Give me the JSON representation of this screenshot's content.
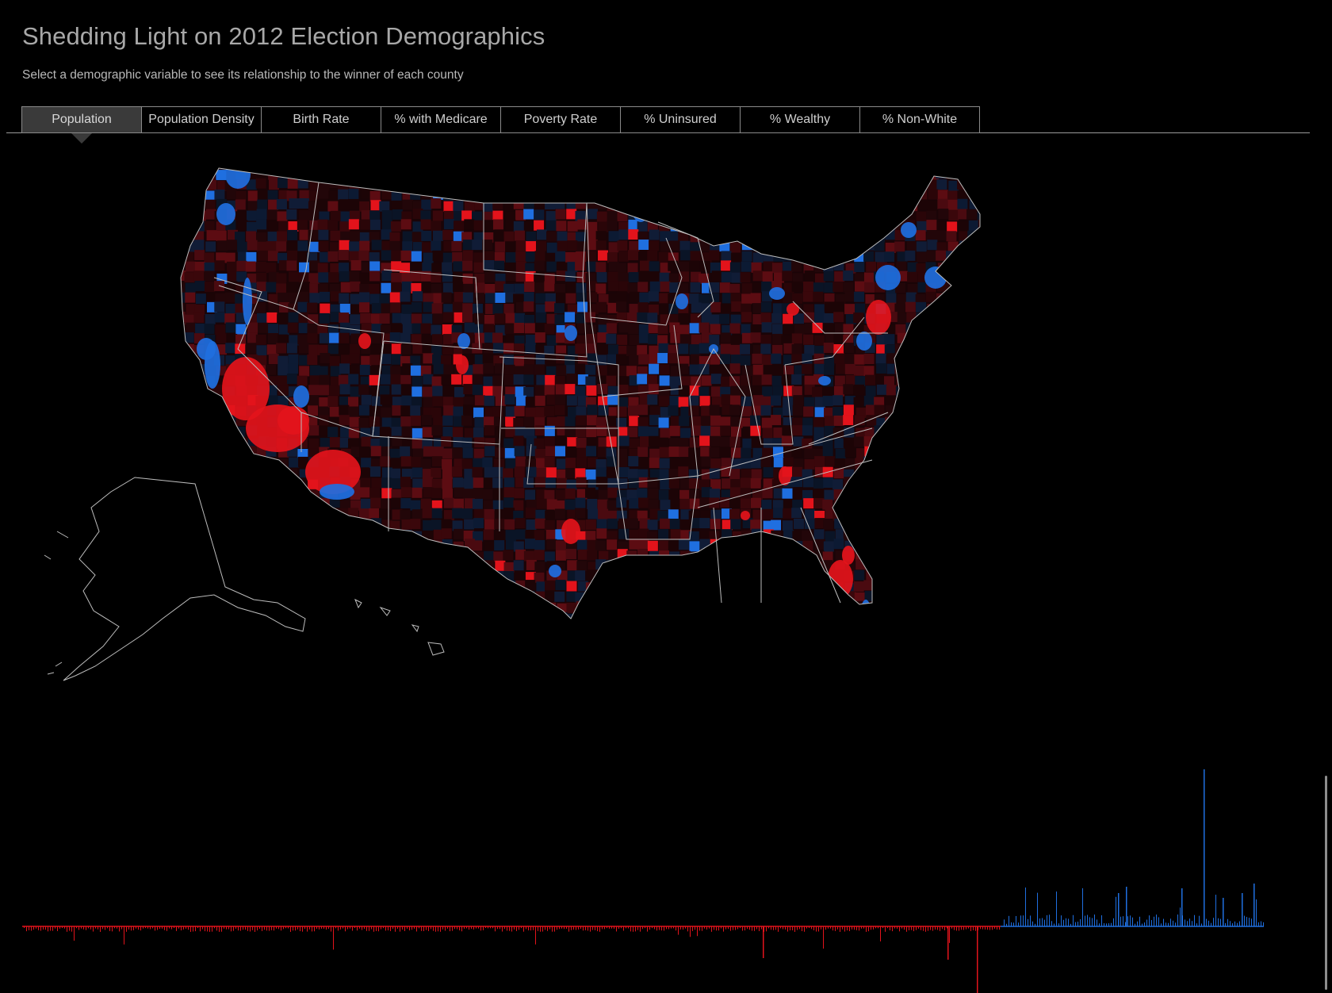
{
  "header": {
    "title": "Shedding Light on 2012 Election Demographics",
    "subtitle": "Select a demographic variable to see its relationship to the winner of each county"
  },
  "tabs": [
    {
      "label": "Population",
      "active": true
    },
    {
      "label": "Population Density",
      "active": false
    },
    {
      "label": "Birth Rate",
      "active": false
    },
    {
      "label": "% with Medicare",
      "active": false
    },
    {
      "label": "Poverty Rate",
      "active": false
    },
    {
      "label": "% Uninsured",
      "active": false
    },
    {
      "label": "% Wealthy",
      "active": false
    },
    {
      "label": "% Non-White",
      "active": false
    }
  ],
  "colors": {
    "background": "#000000",
    "republican": "#e3131b",
    "democrat": "#1f6fe0",
    "border": "#9a9a9a"
  },
  "map": {
    "description": "County choropleth of the contiguous US plus Alaska and Hawaii"
  }
}
